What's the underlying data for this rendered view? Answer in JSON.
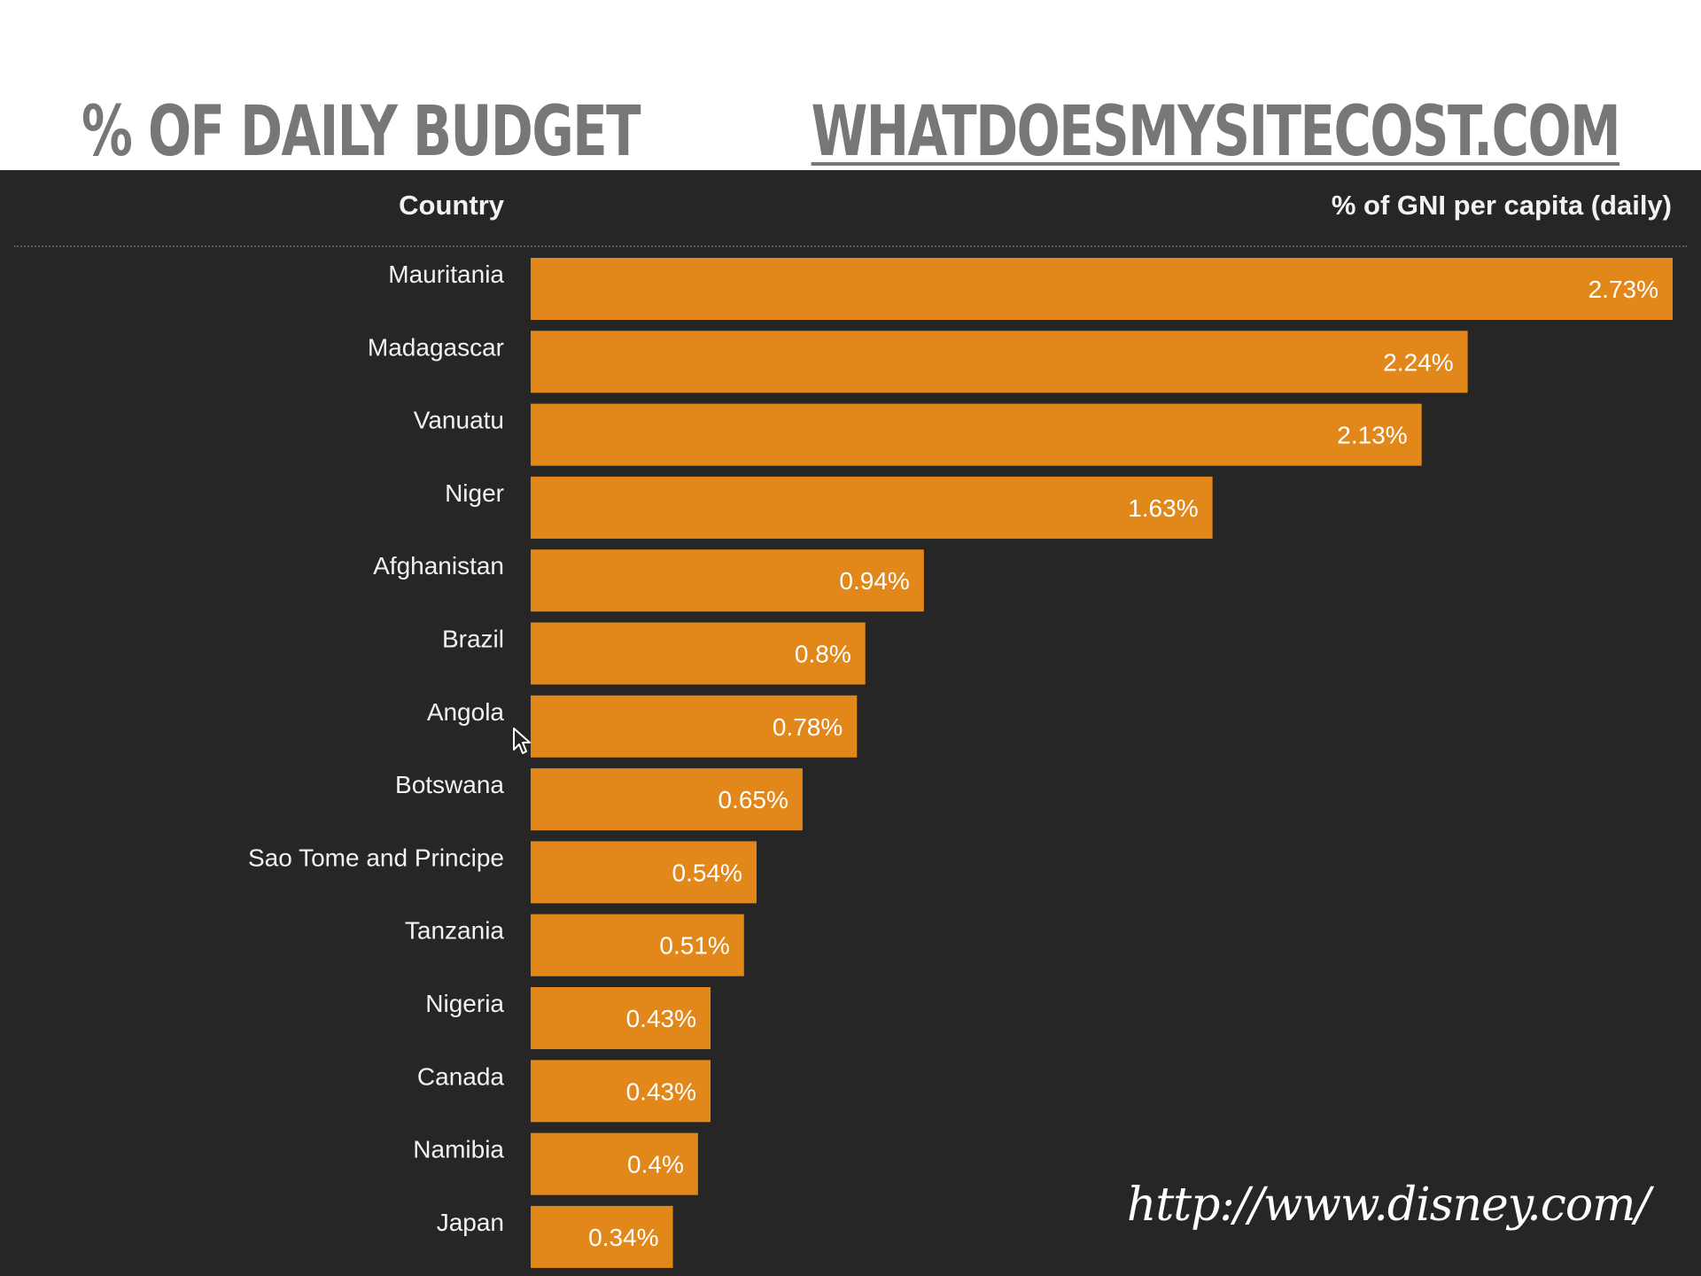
{
  "header": {
    "title": "% OF DAILY BUDGET",
    "site_link": "WHATDOESMYSITECOST.COM"
  },
  "table": {
    "country_header": "Country",
    "value_header": "% of GNI per capita (daily)"
  },
  "source_url": "http://www.disney.com/",
  "colors": {
    "bar": "#e2871a",
    "panel_background": "#262626",
    "title_text": "#777777"
  },
  "chart_data": {
    "type": "bar",
    "orientation": "horizontal",
    "title": "",
    "xlabel": "% of GNI per capita (daily)",
    "ylabel": "Country",
    "xlim": [
      0,
      2.73
    ],
    "grid": false,
    "categories": [
      "Mauritania",
      "Madagascar",
      "Vanuatu",
      "Niger",
      "Afghanistan",
      "Brazil",
      "Angola",
      "Botswana",
      "Sao Tome and Principe",
      "Tanzania",
      "Nigeria",
      "Canada",
      "Namibia",
      "Japan"
    ],
    "values": [
      2.73,
      2.24,
      2.13,
      1.63,
      0.94,
      0.8,
      0.78,
      0.65,
      0.54,
      0.51,
      0.43,
      0.43,
      0.4,
      0.34
    ],
    "value_labels": [
      "2.73%",
      "2.24%",
      "2.13%",
      "1.63%",
      "0.94%",
      "0.8%",
      "0.78%",
      "0.65%",
      "0.54%",
      "0.51%",
      "0.43%",
      "0.43%",
      "0.4%",
      "0.34%"
    ]
  }
}
